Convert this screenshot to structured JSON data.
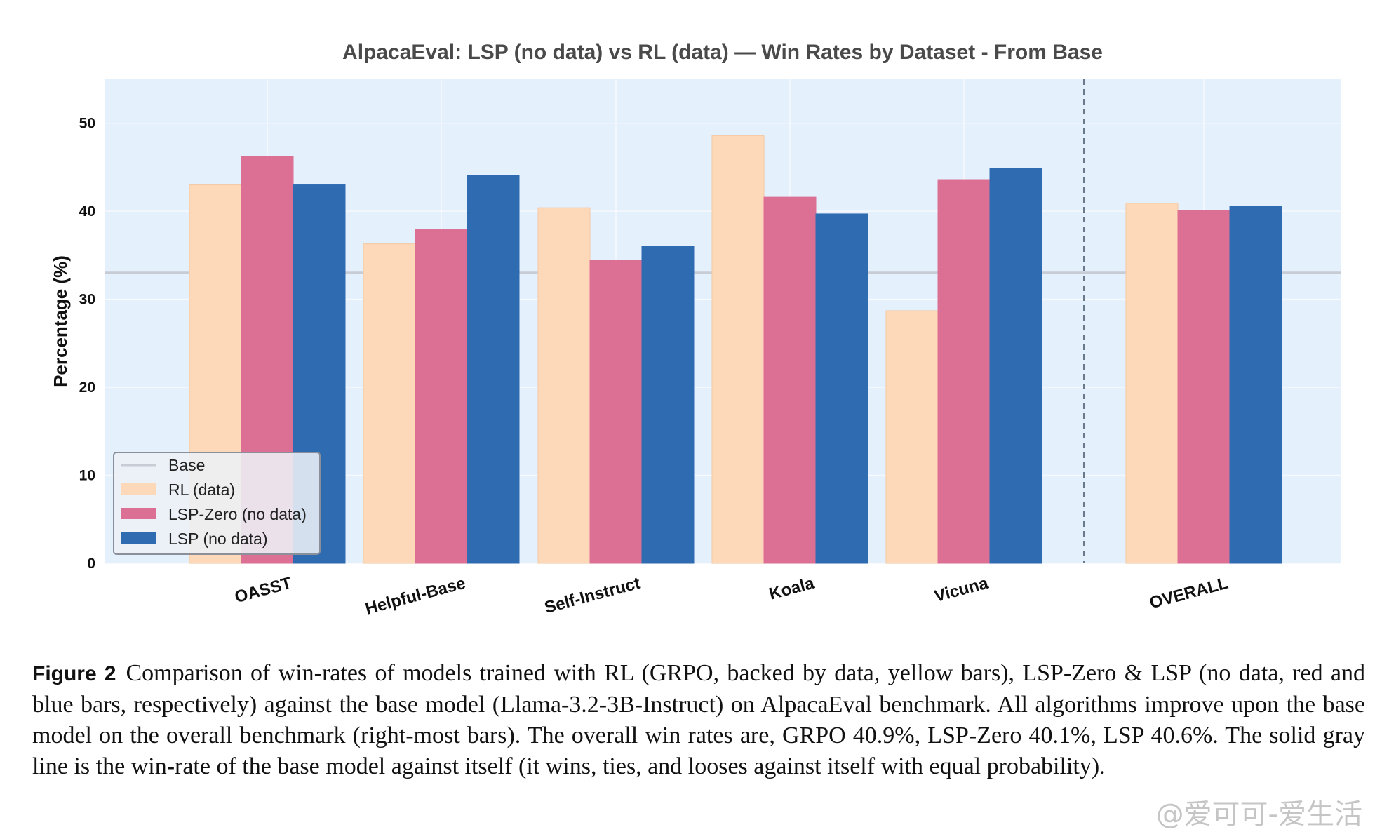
{
  "chart_data": {
    "type": "bar",
    "title": "AlpacaEval: LSP (no data) vs RL (data) — Win Rates by Dataset - From Base",
    "ylabel": "Percentage (%)",
    "xlabel": "",
    "ylim": [
      0,
      55
    ],
    "yticks": [
      0,
      10,
      20,
      30,
      40,
      50
    ],
    "categories": [
      "OASST",
      "Helpful-Base",
      "Self-Instruct",
      "Koala",
      "Vicuna",
      "OVERALL"
    ],
    "series": [
      {
        "name": "RL (data)",
        "color": "#fdd9b9",
        "values": [
          43.0,
          36.3,
          40.4,
          48.6,
          28.7,
          40.9
        ]
      },
      {
        "name": "LSP-Zero (no data)",
        "color": "#dc7094",
        "values": [
          46.2,
          37.9,
          34.4,
          41.6,
          43.6,
          40.1
        ]
      },
      {
        "name": "LSP (no data)",
        "color": "#2e6bb1",
        "values": [
          43.0,
          44.1,
          36.0,
          39.7,
          44.9,
          40.6
        ]
      }
    ],
    "base_line": {
      "name": "Base",
      "value": 33.0,
      "color": "#c8ccd4"
    },
    "legend_position": "lower-left",
    "grid": true,
    "background": "#e5f0fd",
    "separator": "dashed vertical line before OVERALL"
  },
  "caption": {
    "label": "Figure 2",
    "text": "Comparison of win-rates of models trained with RL (GRPO, backed by data, yellow bars), LSP-Zero & LSP (no data, red and blue bars, respectively) against the base model (Llama-3.2-3B-Instruct) on AlpacaEval benchmark. All algorithms improve upon the base model on the overall benchmark (right-most bars). The overall win rates are, GRPO 40.9%, LSP-Zero 40.1%, LSP 40.6%. The solid gray line is the win-rate of the base model against itself (it wins, ties, and looses against itself with equal probability)."
  },
  "watermark": "@爱可可-爱生活"
}
